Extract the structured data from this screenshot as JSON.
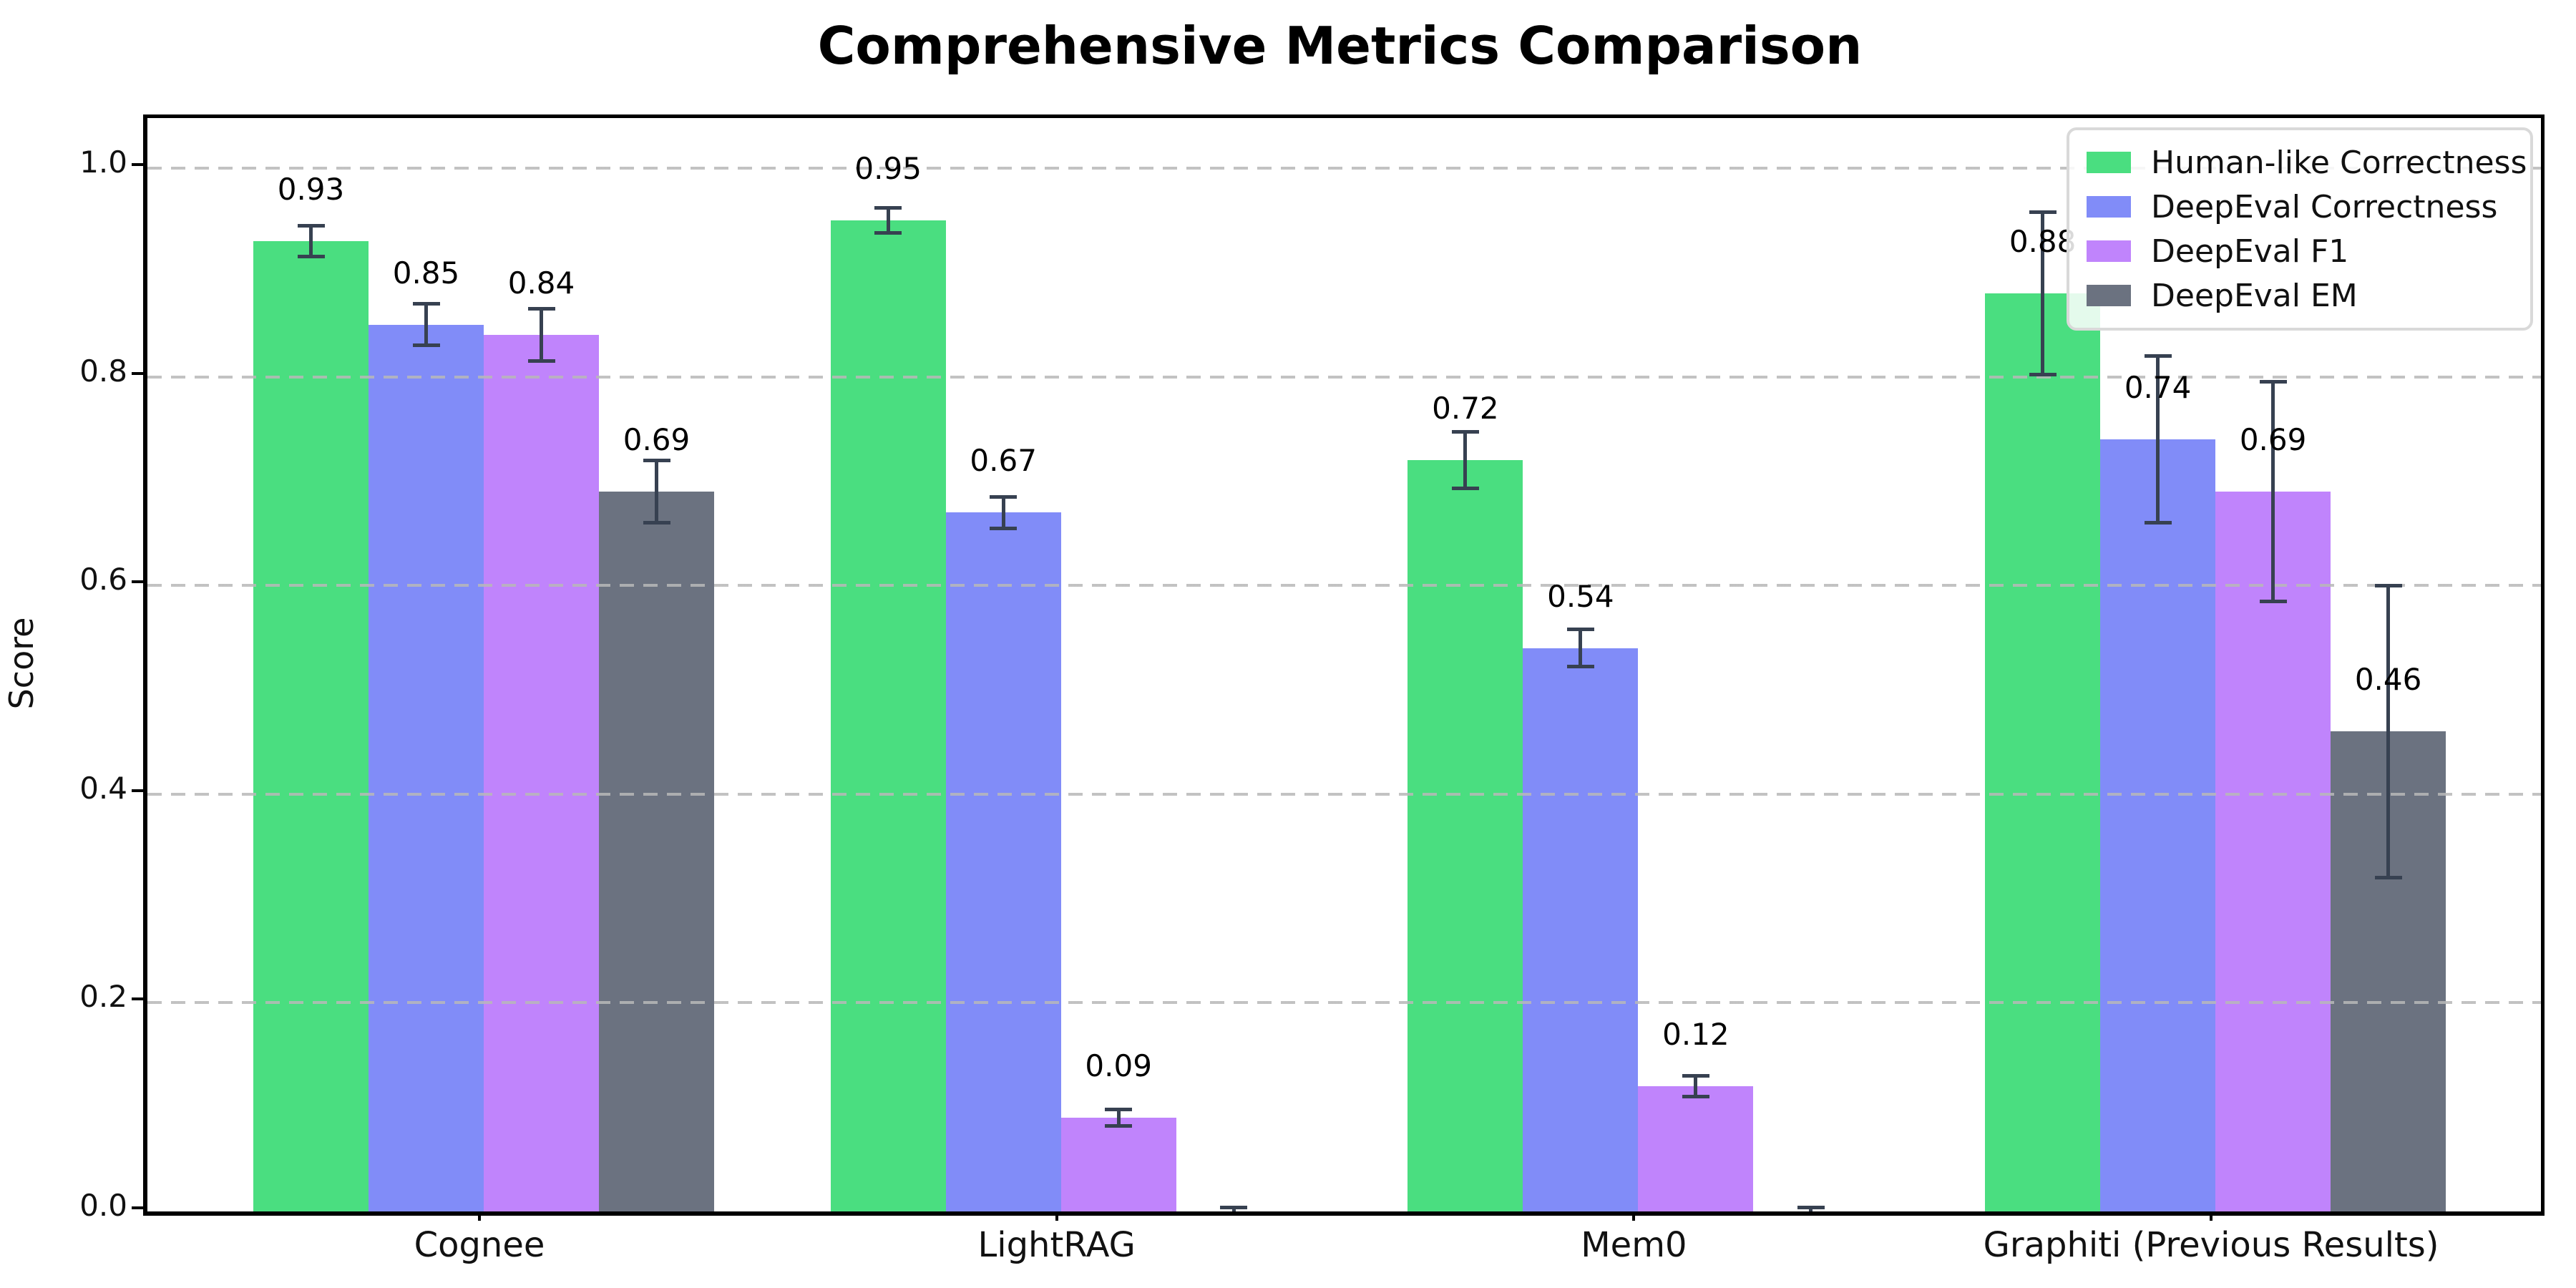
{
  "title": "Comprehensive Metrics Comparison",
  "ylabel": "Score",
  "chart_data": {
    "type": "bar",
    "title": "Comprehensive Metrics Comparison",
    "xlabel": "",
    "ylabel": "Score",
    "ylim": [
      0,
      1.05
    ],
    "yticks": [
      "0.0",
      "0.2",
      "0.4",
      "0.6",
      "0.8",
      "1.0"
    ],
    "ytick_values": [
      0.0,
      0.2,
      0.4,
      0.6,
      0.8,
      1.0
    ],
    "grid": "dashed-horizontal",
    "legend_position": "upper right",
    "categories": [
      "Cognee",
      "LightRAG",
      "Mem0",
      "Graphiti (Previous Results)"
    ],
    "series": [
      {
        "name": "Human-like Correctness",
        "color": "#4ade80",
        "values": [
          0.93,
          0.95,
          0.72,
          0.88
        ],
        "errors": [
          0.015,
          0.012,
          0.027,
          0.078
        ],
        "value_labels": [
          "0.93",
          "0.95",
          "0.72",
          "0.88"
        ]
      },
      {
        "name": "DeepEval Correctness",
        "color": "#818cf8",
        "values": [
          0.85,
          0.67,
          0.54,
          0.74
        ],
        "errors": [
          0.02,
          0.015,
          0.018,
          0.08
        ],
        "value_labels": [
          "0.85",
          "0.67",
          "0.54",
          "0.74"
        ]
      },
      {
        "name": "DeepEval F1",
        "color": "#c084fc",
        "values": [
          0.84,
          0.09,
          0.12,
          0.69
        ],
        "errors": [
          0.025,
          0.008,
          0.01,
          0.105
        ],
        "value_labels": [
          "0.84",
          "0.09",
          "0.12",
          "0.69"
        ]
      },
      {
        "name": "DeepEval EM",
        "color": "#6b7280",
        "values": [
          0.69,
          0.0,
          0.0,
          0.46
        ],
        "errors": [
          0.03,
          0.004,
          0.004,
          0.14
        ],
        "value_labels": [
          "0.69",
          "",
          "",
          "0.46"
        ]
      }
    ],
    "error_bar_color": "#374151"
  }
}
